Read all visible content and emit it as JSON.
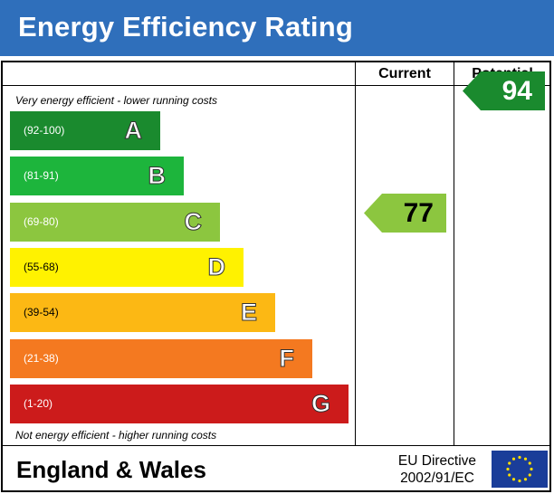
{
  "header": {
    "title": "Energy Efficiency Rating",
    "color": "#2f6fbb"
  },
  "columns": {
    "current": "Current",
    "potential": "Potential"
  },
  "notes": {
    "top": "Very energy efficient - lower running costs",
    "bottom": "Not energy efficient - higher running costs"
  },
  "chart_data": {
    "type": "bar",
    "categories": [
      "A",
      "B",
      "C",
      "D",
      "E",
      "F",
      "G"
    ],
    "bands": [
      {
        "letter": "A",
        "range": "(92-100)",
        "min": 92,
        "max": 100,
        "color": "#1a8a2e",
        "range_color": "#ffffff"
      },
      {
        "letter": "B",
        "range": "(81-91)",
        "min": 81,
        "max": 91,
        "color": "#1db53c",
        "range_color": "#ffffff"
      },
      {
        "letter": "C",
        "range": "(69-80)",
        "min": 69,
        "max": 80,
        "color": "#8cc63f",
        "range_color": "#ffffff"
      },
      {
        "letter": "D",
        "range": "(55-68)",
        "min": 55,
        "max": 68,
        "color": "#fff200",
        "range_color": "#000000"
      },
      {
        "letter": "E",
        "range": "(39-54)",
        "min": 39,
        "max": 54,
        "color": "#fcb814",
        "range_color": "#000000"
      },
      {
        "letter": "F",
        "range": "(21-38)",
        "min": 21,
        "max": 38,
        "color": "#f47920",
        "range_color": "#ffffff"
      },
      {
        "letter": "G",
        "range": "(1-20)",
        "min": 1,
        "max": 20,
        "color": "#cc1b1b",
        "range_color": "#ffffff"
      }
    ],
    "current": {
      "value": 77,
      "band": "C",
      "color": "#8cc63f"
    },
    "potential": {
      "value": 94,
      "band": "A",
      "color": "#1a8a2e"
    }
  },
  "footer": {
    "region": "England & Wales",
    "directive_line1": "EU Directive",
    "directive_line2": "2002/91/EC",
    "flag_icon": "eu-flag-icon",
    "flag_color": "#1a3d99",
    "star_color": "#ffdd00"
  }
}
